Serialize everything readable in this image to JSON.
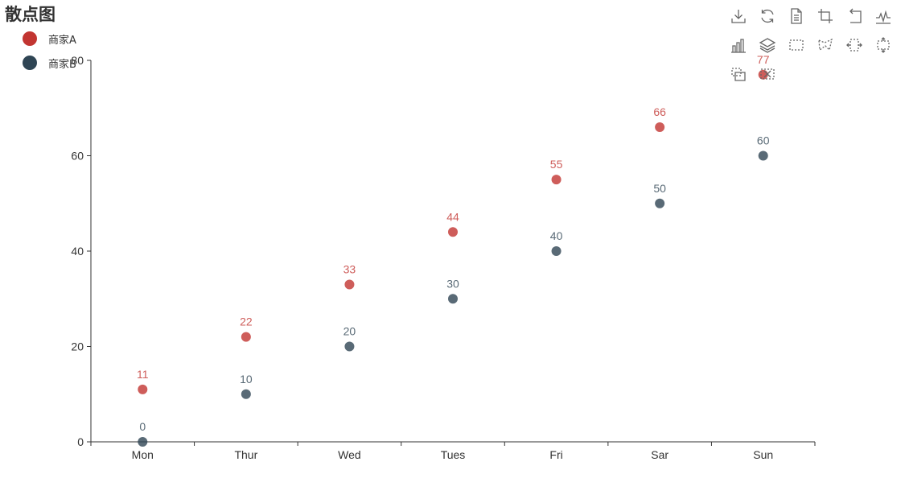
{
  "chart_data": {
    "type": "scatter",
    "title": "散点图",
    "categories": [
      "Mon",
      "Thur",
      "Wed",
      "Tues",
      "Fri",
      "Sar",
      "Sun"
    ],
    "series": [
      {
        "name": "商家A",
        "values": [
          11,
          22,
          33,
          44,
          55,
          66,
          77
        ],
        "color": "#c23531"
      },
      {
        "name": "商家B",
        "values": [
          0,
          10,
          20,
          30,
          40,
          50,
          60
        ],
        "color": "#2f4554"
      }
    ],
    "ylim": [
      0,
      80
    ],
    "yticks": [
      0,
      20,
      40,
      60,
      80
    ],
    "xlabel": "",
    "ylabel": "",
    "legend_position": "top-left",
    "grid": false,
    "data_labels": true
  },
  "toolbox": {
    "icons": [
      "download-icon",
      "refresh-icon",
      "data-view-icon",
      "crop-icon",
      "undo-icon",
      "line-chart-icon",
      "bar-chart-icon",
      "stack-icon",
      "rect-select-icon",
      "polygon-select-icon",
      "horizontal-select-icon",
      "vertical-select-icon",
      "keep-selection-icon",
      "clear-selection-icon"
    ]
  }
}
